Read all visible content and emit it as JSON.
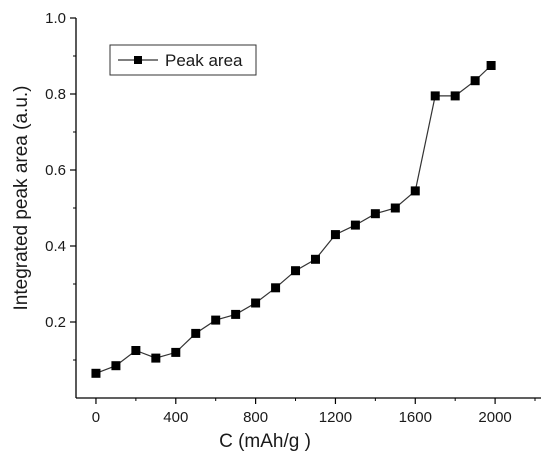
{
  "chart_data": {
    "type": "line",
    "xlabel": "C (mAh/g )",
    "ylabel": "Integrated peak area (a.u.)",
    "xlim": [
      -100,
      2230
    ],
    "ylim": [
      0,
      1.0
    ],
    "x_ticks": [
      0,
      400,
      800,
      1200,
      1600,
      2000
    ],
    "y_ticks": [
      0.2,
      0.4,
      0.6,
      0.8,
      1.0
    ],
    "x_tick_labels": [
      "0",
      "400",
      "800",
      "1200",
      "1600",
      "2000"
    ],
    "y_tick_labels": [
      "0.2",
      "0.4",
      "0.6",
      "0.8",
      "1.0"
    ],
    "legend_position": "top-left",
    "grid": false,
    "series": [
      {
        "name": "Peak area",
        "color": "#000000",
        "marker": "square",
        "x": [
          0,
          100,
          200,
          300,
          400,
          500,
          600,
          700,
          800,
          900,
          1000,
          1100,
          1200,
          1300,
          1400,
          1500,
          1600,
          1700,
          1800,
          1900,
          1980
        ],
        "y": [
          0.065,
          0.085,
          0.125,
          0.105,
          0.12,
          0.17,
          0.205,
          0.22,
          0.25,
          0.29,
          0.335,
          0.365,
          0.43,
          0.455,
          0.485,
          0.5,
          0.545,
          0.795,
          0.795,
          0.835,
          0.875
        ]
      }
    ]
  }
}
